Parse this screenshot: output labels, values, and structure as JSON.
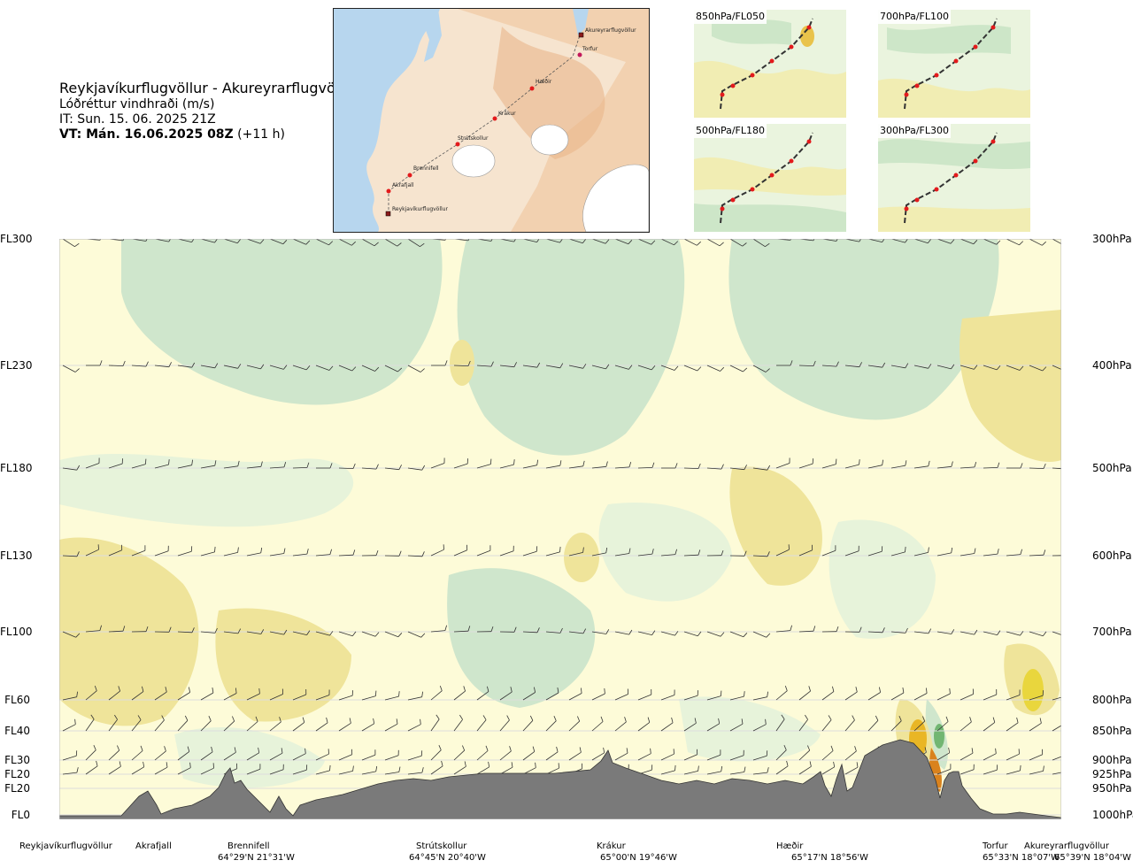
{
  "header": {
    "route": "Reykjavíkurflugvöllur - Akureyrarflugvöllur",
    "quantity": "Lóðréttur vindhraði (m/s)",
    "issue": "IT: Sun. 15. 06. 2025 21Z",
    "valid_bold": "VT: Mán. 16.06.2025 08Z",
    "valid_rest": " (+11 h)"
  },
  "map_labels": {
    "akureyri": "Akureyrarflugvöllur",
    "torfur": "Torfur",
    "haedir": "Hæðir",
    "krakur": "Krákur",
    "strutskollur": "Strútskollur",
    "brennifell": "Brennifell",
    "akrafjall": "Akrafjall",
    "reykjavik": "Reykjavíkurflugvöllur"
  },
  "mini_maps": {
    "m850": "850hPa/FL050",
    "m700": "700hPa/FL100",
    "m500": "500hPa/FL180",
    "m300": "300hPa/FL300"
  },
  "levels_left": {
    "fl300": "FL300",
    "fl230": "FL230",
    "fl180": "FL180",
    "fl130": "FL130",
    "fl100": "FL100",
    "fl60": "FL60",
    "fl40": "FL40",
    "fl30": "FL30",
    "fl20a": "FL20",
    "fl20b": "FL20",
    "fl0": "FL0"
  },
  "levels_right": {
    "p300": "300hPa",
    "p400": "400hPa",
    "p500": "500hPa",
    "p600": "600hPa",
    "p700": "700hPa",
    "p800": "800hPa",
    "p850": "850hPa",
    "p900": "900hPa",
    "p925": "925hPa",
    "p950": "950hPa",
    "p1000": "1000hPa"
  },
  "waypoints": {
    "reykjavik": "Reykjavíkurflugvöllur",
    "akrafjall": "Akrafjall",
    "brennifell": "Brennifell",
    "brennifell_coord": "64°29'N 21°31'W",
    "strutskollur": "Strútskollur",
    "strutskollur_coord": "64°45'N 20°40'W",
    "krakur": "Krákur",
    "krakur_coord": "65°00'N 19°46'W",
    "haedir": "Hæðir",
    "haedir_coord": "65°17'N 18°56'W",
    "torfur": "Torfur",
    "torfur_coord": "65°33'N 18°07'W",
    "akureyri": "Akureyrarflugvöllur",
    "akureyri_coord": "65°39'N 18°04'W"
  },
  "colors": {
    "up_strong": "#e9b625",
    "up": "#efe49a",
    "up_weak": "#fdfbd8",
    "down_weak": "#e7f3da",
    "down": "#cfe6cc",
    "down_strong": "#72b672",
    "terrain": "#7a7a7a",
    "route": "#e31a1c"
  }
}
